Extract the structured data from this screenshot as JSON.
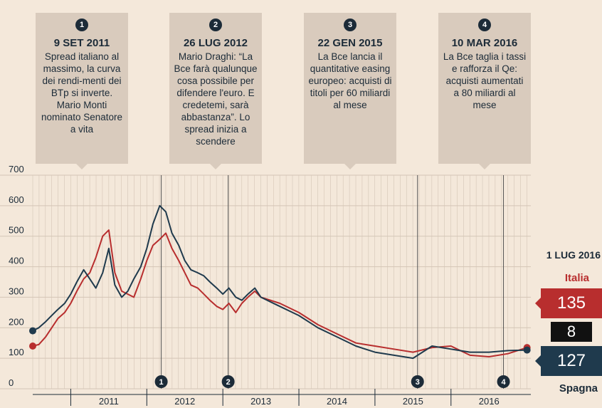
{
  "callouts": [
    {
      "num": "1",
      "date": "9 SET 2011",
      "text": "Spread italiano al massimo, la curva dei rendi-menti dei BTp si inverte. Mario Monti nominato Senatore a vita"
    },
    {
      "num": "2",
      "date": "26 LUG 2012",
      "text": "Mario Draghi: “La Bce farà qualunque cosa possibile per difendere l'euro. E credetemi, sarà abbastanza”. Lo spread inizia a scendere"
    },
    {
      "num": "3",
      "date": "22 GEN 2015",
      "text": "La Bce lancia il quantitative easing europeo: acquisti di titoli per 60 miliardi al mese"
    },
    {
      "num": "4",
      "date": "10 MAR 2016",
      "text": "La Bce taglia i tassi e rafforza il Qe: acquisti aumentati a 80 miliardi al mese"
    }
  ],
  "side_panel": {
    "date": "1 LUG 2016",
    "italia_label": "Italia",
    "italia_value": "135",
    "diff_value": "8",
    "spagna_label": "Spagna",
    "spagna_value": "127"
  },
  "colors": {
    "italia": "#b82e2e",
    "spagna": "#1f3a4d",
    "grid": "#d4c5b6",
    "background": "#f4e8da",
    "callout": "#d9cbbd"
  },
  "chart_data": {
    "type": "line",
    "title": "",
    "ylim": [
      0,
      700
    ],
    "yticks": [
      0,
      100,
      200,
      300,
      400,
      500,
      600,
      700
    ],
    "xlim": [
      2010.0,
      2016.55
    ],
    "xticks": [
      {
        "label": "2011",
        "pos": 2011.0
      },
      {
        "label": "2012",
        "pos": 2012.0
      },
      {
        "label": "2013",
        "pos": 2013.0
      },
      {
        "label": "2014",
        "pos": 2014.0
      },
      {
        "label": "2015",
        "pos": 2015.0
      },
      {
        "label": "2016",
        "pos": 2016.0
      }
    ],
    "events": [
      {
        "num": "1",
        "x": 2011.69
      },
      {
        "num": "2",
        "x": 2012.57
      },
      {
        "num": "3",
        "x": 2015.06
      },
      {
        "num": "4",
        "x": 2016.19
      }
    ],
    "series": [
      {
        "name": "Italia",
        "color": "#b82e2e",
        "x": [
          2010.0,
          2010.08,
          2010.17,
          2010.25,
          2010.33,
          2010.42,
          2010.5,
          2010.58,
          2010.67,
          2010.75,
          2010.83,
          2010.92,
          2011.0,
          2011.08,
          2011.17,
          2011.25,
          2011.33,
          2011.42,
          2011.5,
          2011.58,
          2011.67,
          2011.75,
          2011.83,
          2011.92,
          2012.0,
          2012.08,
          2012.17,
          2012.25,
          2012.33,
          2012.42,
          2012.5,
          2012.58,
          2012.67,
          2012.75,
          2012.83,
          2012.92,
          2013.0,
          2013.25,
          2013.5,
          2013.75,
          2014.0,
          2014.25,
          2014.5,
          2014.75,
          2015.0,
          2015.25,
          2015.5,
          2015.75,
          2016.0,
          2016.25,
          2016.5
        ],
        "values": [
          140,
          145,
          170,
          200,
          230,
          250,
          280,
          320,
          360,
          380,
          430,
          500,
          520,
          380,
          320,
          310,
          300,
          360,
          420,
          470,
          490,
          510,
          460,
          420,
          380,
          340,
          330,
          310,
          290,
          270,
          260,
          280,
          250,
          280,
          300,
          320,
          300,
          280,
          250,
          210,
          180,
          150,
          140,
          130,
          120,
          135,
          140,
          110,
          105,
          115,
          135
        ]
      },
      {
        "name": "Spagna",
        "color": "#1f3a4d",
        "x": [
          2010.0,
          2010.08,
          2010.17,
          2010.25,
          2010.33,
          2010.42,
          2010.5,
          2010.58,
          2010.67,
          2010.75,
          2010.83,
          2010.92,
          2011.0,
          2011.08,
          2011.17,
          2011.25,
          2011.33,
          2011.42,
          2011.5,
          2011.58,
          2011.67,
          2011.75,
          2011.83,
          2011.92,
          2012.0,
          2012.08,
          2012.17,
          2012.25,
          2012.33,
          2012.42,
          2012.5,
          2012.58,
          2012.67,
          2012.75,
          2012.83,
          2012.92,
          2013.0,
          2013.25,
          2013.5,
          2013.75,
          2014.0,
          2014.25,
          2014.5,
          2014.75,
          2015.0,
          2015.25,
          2015.5,
          2015.75,
          2016.0,
          2016.25,
          2016.5
        ],
        "values": [
          190,
          200,
          220,
          240,
          260,
          280,
          310,
          350,
          390,
          360,
          330,
          380,
          460,
          340,
          300,
          320,
          360,
          400,
          460,
          540,
          600,
          580,
          510,
          470,
          420,
          390,
          380,
          370,
          350,
          330,
          310,
          330,
          300,
          290,
          310,
          330,
          300,
          270,
          240,
          200,
          170,
          140,
          120,
          110,
          100,
          140,
          130,
          120,
          120,
          125,
          127
        ]
      }
    ]
  }
}
